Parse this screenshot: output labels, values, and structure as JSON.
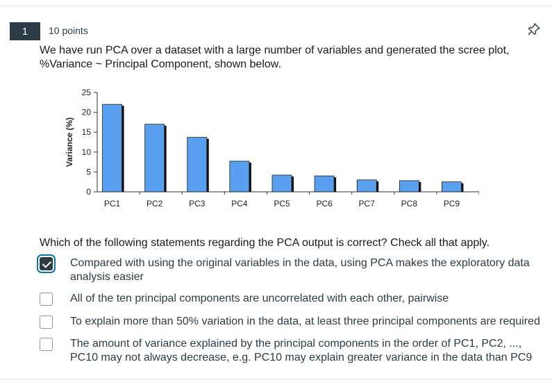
{
  "question": {
    "number": "1",
    "points": "10 points",
    "prompt": "We have run PCA over a dataset with a large number of variables and generated the scree plot, %Variance ~ Principal Component, shown below.",
    "instruction": "Which of the following statements regarding the PCA output is correct? Check all that apply.",
    "pin_icon": "pin-icon"
  },
  "chart_data": {
    "type": "bar",
    "title": "",
    "xlabel": "",
    "ylabel": "Variance (%)",
    "categories": [
      "PC1",
      "PC2",
      "PC3",
      "PC4",
      "PC5",
      "PC6",
      "PC7",
      "PC8",
      "PC9"
    ],
    "values": [
      22,
      17,
      13.7,
      7.7,
      4.2,
      4.0,
      3.0,
      2.8,
      2.5
    ],
    "yticks": [
      "0",
      "5",
      "10",
      "15",
      "20",
      "25"
    ],
    "ylim": [
      0,
      25
    ],
    "grid": false,
    "bar_color": "#5aa0f0",
    "shadow_color": "#111111"
  },
  "options": [
    {
      "text": "Compared with using the original variables in the data, using PCA makes the exploratory data analysis easier",
      "checked": true
    },
    {
      "text": "All of the ten principal components are uncorrelated with each other, pairwise",
      "checked": false
    },
    {
      "text": "To explain more than 50% variation in the data, at least three principal components are required",
      "checked": false
    },
    {
      "text": "The amount of variance explained by the principal components in the order of PC1, PC2, ..., PC10 may not always decrease, e.g. PC10 may explain greater variance in the data than PC9",
      "checked": false
    }
  ],
  "colors": {
    "accent": "#0374b5",
    "text": "#2d3b45",
    "checked_fill": "#2d3b45"
  }
}
